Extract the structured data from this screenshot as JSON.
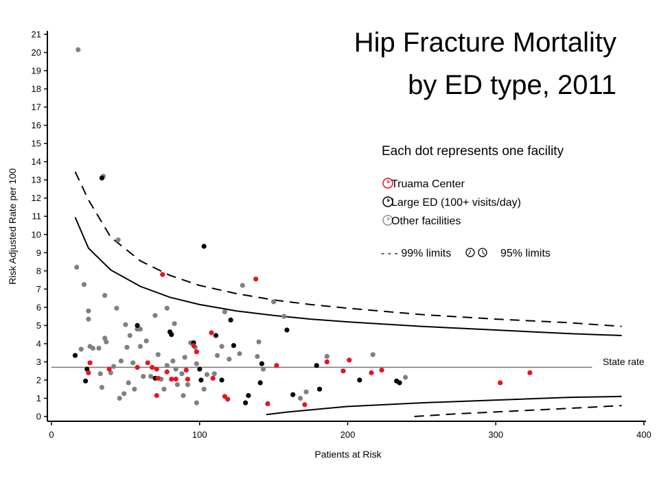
{
  "chart_data": {
    "type": "scatter",
    "title": "Hip Fracture Mortality",
    "subtitle": "by ED type, 2011",
    "xlabel": "Patients at Risk",
    "ylabel": "Risk Adjusted Rate per 100",
    "xlim": [
      0,
      400
    ],
    "ylim": [
      0,
      21
    ],
    "x_ticks": [
      0,
      100,
      200,
      300,
      400
    ],
    "y_ticks": [
      0,
      1,
      2,
      3,
      4,
      5,
      6,
      7,
      8,
      9,
      10,
      11,
      12,
      13,
      14,
      15,
      16,
      17,
      18,
      19,
      20,
      21
    ],
    "grid": false,
    "legend": {
      "header": "Each dot represents one facility",
      "items": [
        "Truama Center",
        "Large ED (100+ visits/day)",
        "Other facilities"
      ],
      "limits_text": "- - - 99% limits",
      "limits_text2": "95% limits",
      "placement": "right"
    },
    "reference_line": {
      "label": "State rate",
      "value": 2.7
    },
    "series": [
      {
        "name": "Truama Center",
        "color": "#e8141c",
        "points": [
          [
            75,
            7.8
          ],
          [
            138,
            7.55
          ],
          [
            26,
            2.95
          ],
          [
            25,
            2.4
          ],
          [
            39,
            2.6
          ],
          [
            58,
            2.7
          ],
          [
            65,
            2.95
          ],
          [
            68,
            2.7
          ],
          [
            71,
            2.6
          ],
          [
            72,
            2.1
          ],
          [
            78,
            2.45
          ],
          [
            81,
            2.05
          ],
          [
            84,
            2.05
          ],
          [
            92,
            2.05
          ],
          [
            91,
            2.55
          ],
          [
            96,
            3.9
          ],
          [
            98,
            3.55
          ],
          [
            108,
            4.6
          ],
          [
            109,
            2.1
          ],
          [
            117,
            1.1
          ],
          [
            119,
            0.95
          ],
          [
            146,
            0.7
          ],
          [
            152,
            2.8
          ],
          [
            171,
            0.65
          ],
          [
            186,
            3.0
          ],
          [
            197,
            2.5
          ],
          [
            201,
            3.1
          ],
          [
            216,
            2.4
          ],
          [
            223,
            2.55
          ],
          [
            303,
            1.85
          ],
          [
            323,
            2.4
          ],
          [
            71,
            1.15
          ]
        ]
      },
      {
        "name": "Large ED (100+ visits/day)",
        "color": "#000000",
        "points": [
          [
            16,
            3.35
          ],
          [
            23,
            1.95
          ],
          [
            24,
            2.6
          ],
          [
            34,
            13.1
          ],
          [
            58,
            5.0
          ],
          [
            70,
            2.1
          ],
          [
            80,
            4.65
          ],
          [
            81,
            4.5
          ],
          [
            96,
            4.05
          ],
          [
            100,
            2.6
          ],
          [
            103,
            9.35
          ],
          [
            101,
            2.0
          ],
          [
            111,
            4.45
          ],
          [
            115,
            2.0
          ],
          [
            121,
            5.3
          ],
          [
            123,
            3.9
          ],
          [
            131,
            0.75
          ],
          [
            133,
            1.15
          ],
          [
            141,
            1.85
          ],
          [
            142,
            2.9
          ],
          [
            159,
            4.75
          ],
          [
            163,
            1.2
          ],
          [
            179,
            2.8
          ],
          [
            181,
            1.5
          ],
          [
            208,
            2.0
          ],
          [
            233,
            1.95
          ],
          [
            235,
            1.85
          ]
        ]
      },
      {
        "name": "Other facilities",
        "color": "#808080",
        "points": [
          [
            18,
            20.15
          ],
          [
            17,
            8.2
          ],
          [
            22,
            7.25
          ],
          [
            25,
            5.8
          ],
          [
            25,
            5.35
          ],
          [
            20,
            3.7
          ],
          [
            26,
            3.85
          ],
          [
            28,
            3.75
          ],
          [
            32,
            3.75
          ],
          [
            33,
            2.35
          ],
          [
            34,
            1.6
          ],
          [
            35,
            13.2
          ],
          [
            36,
            6.65
          ],
          [
            36,
            4.3
          ],
          [
            37,
            4.1
          ],
          [
            40,
            2.4
          ],
          [
            42,
            2.75
          ],
          [
            44,
            5.95
          ],
          [
            45,
            9.7
          ],
          [
            46,
            1.0
          ],
          [
            47,
            3.05
          ],
          [
            49,
            1.25
          ],
          [
            50,
            5.05
          ],
          [
            51,
            3.8
          ],
          [
            52,
            1.85
          ],
          [
            53,
            4.45
          ],
          [
            55,
            2.95
          ],
          [
            56,
            1.5
          ],
          [
            58,
            4.8
          ],
          [
            60,
            3.85
          ],
          [
            60,
            4.8
          ],
          [
            62,
            2.2
          ],
          [
            64,
            4.15
          ],
          [
            67,
            2.2
          ],
          [
            70,
            5.55
          ],
          [
            72,
            3.4
          ],
          [
            74,
            2.05
          ],
          [
            76,
            1.5
          ],
          [
            78,
            2.8
          ],
          [
            78,
            5.95
          ],
          [
            82,
            3.05
          ],
          [
            83,
            5.1
          ],
          [
            84,
            2.6
          ],
          [
            85,
            1.75
          ],
          [
            88,
            2.35
          ],
          [
            89,
            1.15
          ],
          [
            90,
            3.25
          ],
          [
            92,
            1.75
          ],
          [
            94,
            4.05
          ],
          [
            97,
            3.8
          ],
          [
            98,
            2.9
          ],
          [
            98,
            0.75
          ],
          [
            103,
            1.5
          ],
          [
            105,
            2.3
          ],
          [
            110,
            2.35
          ],
          [
            112,
            3.35
          ],
          [
            115,
            3.85
          ],
          [
            117,
            5.75
          ],
          [
            120,
            3.15
          ],
          [
            127,
            3.45
          ],
          [
            129,
            7.2
          ],
          [
            139,
            3.3
          ],
          [
            140,
            4.1
          ],
          [
            143,
            2.6
          ],
          [
            150,
            6.3
          ],
          [
            157,
            5.5
          ],
          [
            168,
            1.0
          ],
          [
            172,
            1.35
          ],
          [
            186,
            3.3
          ],
          [
            217,
            3.4
          ],
          [
            239,
            2.15
          ]
        ]
      }
    ],
    "limit_curves": {
      "upper_99": [
        [
          16,
          13.45
        ],
        [
          25,
          11.9
        ],
        [
          40,
          9.85
        ],
        [
          60,
          8.55
        ],
        [
          80,
          7.75
        ],
        [
          100,
          7.2
        ],
        [
          125,
          6.75
        ],
        [
          150,
          6.4
        ],
        [
          175,
          6.15
        ],
        [
          200,
          5.95
        ],
        [
          250,
          5.6
        ],
        [
          300,
          5.35
        ],
        [
          350,
          5.15
        ],
        [
          385,
          4.95
        ]
      ],
      "upper_95": [
        [
          16,
          10.95
        ],
        [
          25,
          9.25
        ],
        [
          40,
          8.05
        ],
        [
          60,
          7.15
        ],
        [
          80,
          6.55
        ],
        [
          100,
          6.15
        ],
        [
          125,
          5.8
        ],
        [
          150,
          5.55
        ],
        [
          175,
          5.35
        ],
        [
          200,
          5.2
        ],
        [
          250,
          4.95
        ],
        [
          300,
          4.75
        ],
        [
          350,
          4.55
        ],
        [
          385,
          4.45
        ]
      ],
      "lower_95": [
        [
          145,
          0.1
        ],
        [
          160,
          0.25
        ],
        [
          180,
          0.4
        ],
        [
          200,
          0.55
        ],
        [
          250,
          0.75
        ],
        [
          300,
          0.9
        ],
        [
          350,
          1.05
        ],
        [
          385,
          1.1
        ]
      ],
      "lower_99": [
        [
          245,
          0.0
        ],
        [
          275,
          0.15
        ],
        [
          300,
          0.25
        ],
        [
          350,
          0.45
        ],
        [
          385,
          0.6
        ]
      ]
    }
  }
}
